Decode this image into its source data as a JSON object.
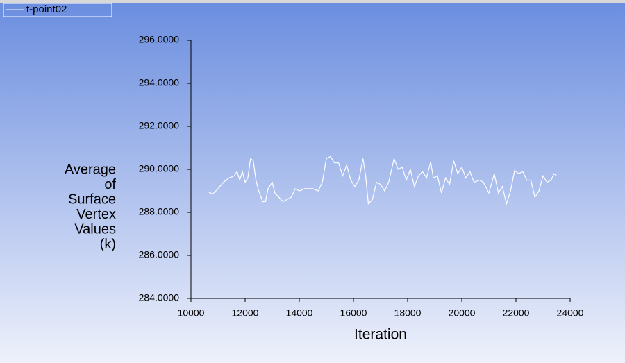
{
  "chart_data": {
    "type": "line",
    "xlabel": "Iteration",
    "ylabel": [
      "Average",
      "of",
      "Surface",
      "Vertex",
      "Values",
      "(k)"
    ],
    "xlim": [
      10000,
      24000
    ],
    "xticks": [
      10000,
      12000,
      14000,
      16000,
      18000,
      20000,
      22000,
      24000
    ],
    "ylim": [
      284,
      296
    ],
    "yticks": [
      {
        "value": 284,
        "label": "284.0000"
      },
      {
        "value": 286,
        "label": "286.0000"
      },
      {
        "value": 288,
        "label": "288.0000"
      },
      {
        "value": 290,
        "label": "290.0000"
      },
      {
        "value": 292,
        "label": "292.0000"
      },
      {
        "value": 294,
        "label": "294.0000"
      },
      {
        "value": 296,
        "label": "296.0000"
      }
    ],
    "legend": "top-left",
    "series": [
      {
        "name": "t-point02",
        "color": "#ffffff",
        "x": [
          10650,
          10800,
          11000,
          11200,
          11400,
          11600,
          11700,
          11800,
          11900,
          12000,
          12100,
          12200,
          12300,
          12400,
          12500,
          12650,
          12750,
          12850,
          13000,
          13100,
          13250,
          13400,
          13550,
          13700,
          13850,
          14000,
          14200,
          14500,
          14700,
          14850,
          15000,
          15150,
          15300,
          15450,
          15600,
          15750,
          15900,
          16050,
          16200,
          16350,
          16450,
          16550,
          16700,
          16850,
          17000,
          17150,
          17300,
          17500,
          17650,
          17800,
          17950,
          18100,
          18250,
          18400,
          18550,
          18700,
          18850,
          18950,
          19100,
          19250,
          19400,
          19550,
          19700,
          19850,
          20000,
          20150,
          20300,
          20450,
          20650,
          20800,
          21000,
          21200,
          21350,
          21500,
          21650,
          21800,
          21950,
          22100,
          22250,
          22400,
          22550,
          22700,
          22850,
          23000,
          23150,
          23300,
          23400,
          23500
        ],
        "values": [
          288.95,
          288.85,
          289.1,
          289.4,
          289.6,
          289.7,
          289.9,
          289.5,
          289.9,
          289.4,
          289.6,
          290.5,
          290.4,
          289.5,
          289.0,
          288.5,
          288.5,
          289.1,
          289.4,
          288.9,
          288.7,
          288.5,
          288.6,
          288.7,
          289.1,
          289.0,
          289.1,
          289.1,
          289.0,
          289.4,
          290.5,
          290.6,
          290.3,
          290.3,
          289.7,
          290.2,
          289.5,
          289.2,
          289.5,
          290.5,
          289.7,
          288.4,
          288.6,
          289.4,
          289.3,
          289.0,
          289.4,
          290.5,
          290.0,
          290.1,
          289.5,
          290.0,
          289.2,
          289.7,
          289.9,
          289.6,
          290.35,
          289.6,
          289.7,
          288.9,
          289.6,
          289.3,
          290.4,
          289.8,
          290.1,
          289.6,
          289.9,
          289.4,
          289.5,
          289.4,
          288.9,
          289.8,
          288.9,
          289.2,
          288.4,
          289.0,
          289.95,
          289.8,
          289.9,
          289.5,
          289.5,
          288.7,
          289.0,
          289.7,
          289.4,
          289.5,
          289.8,
          289.7
        ]
      }
    ]
  }
}
